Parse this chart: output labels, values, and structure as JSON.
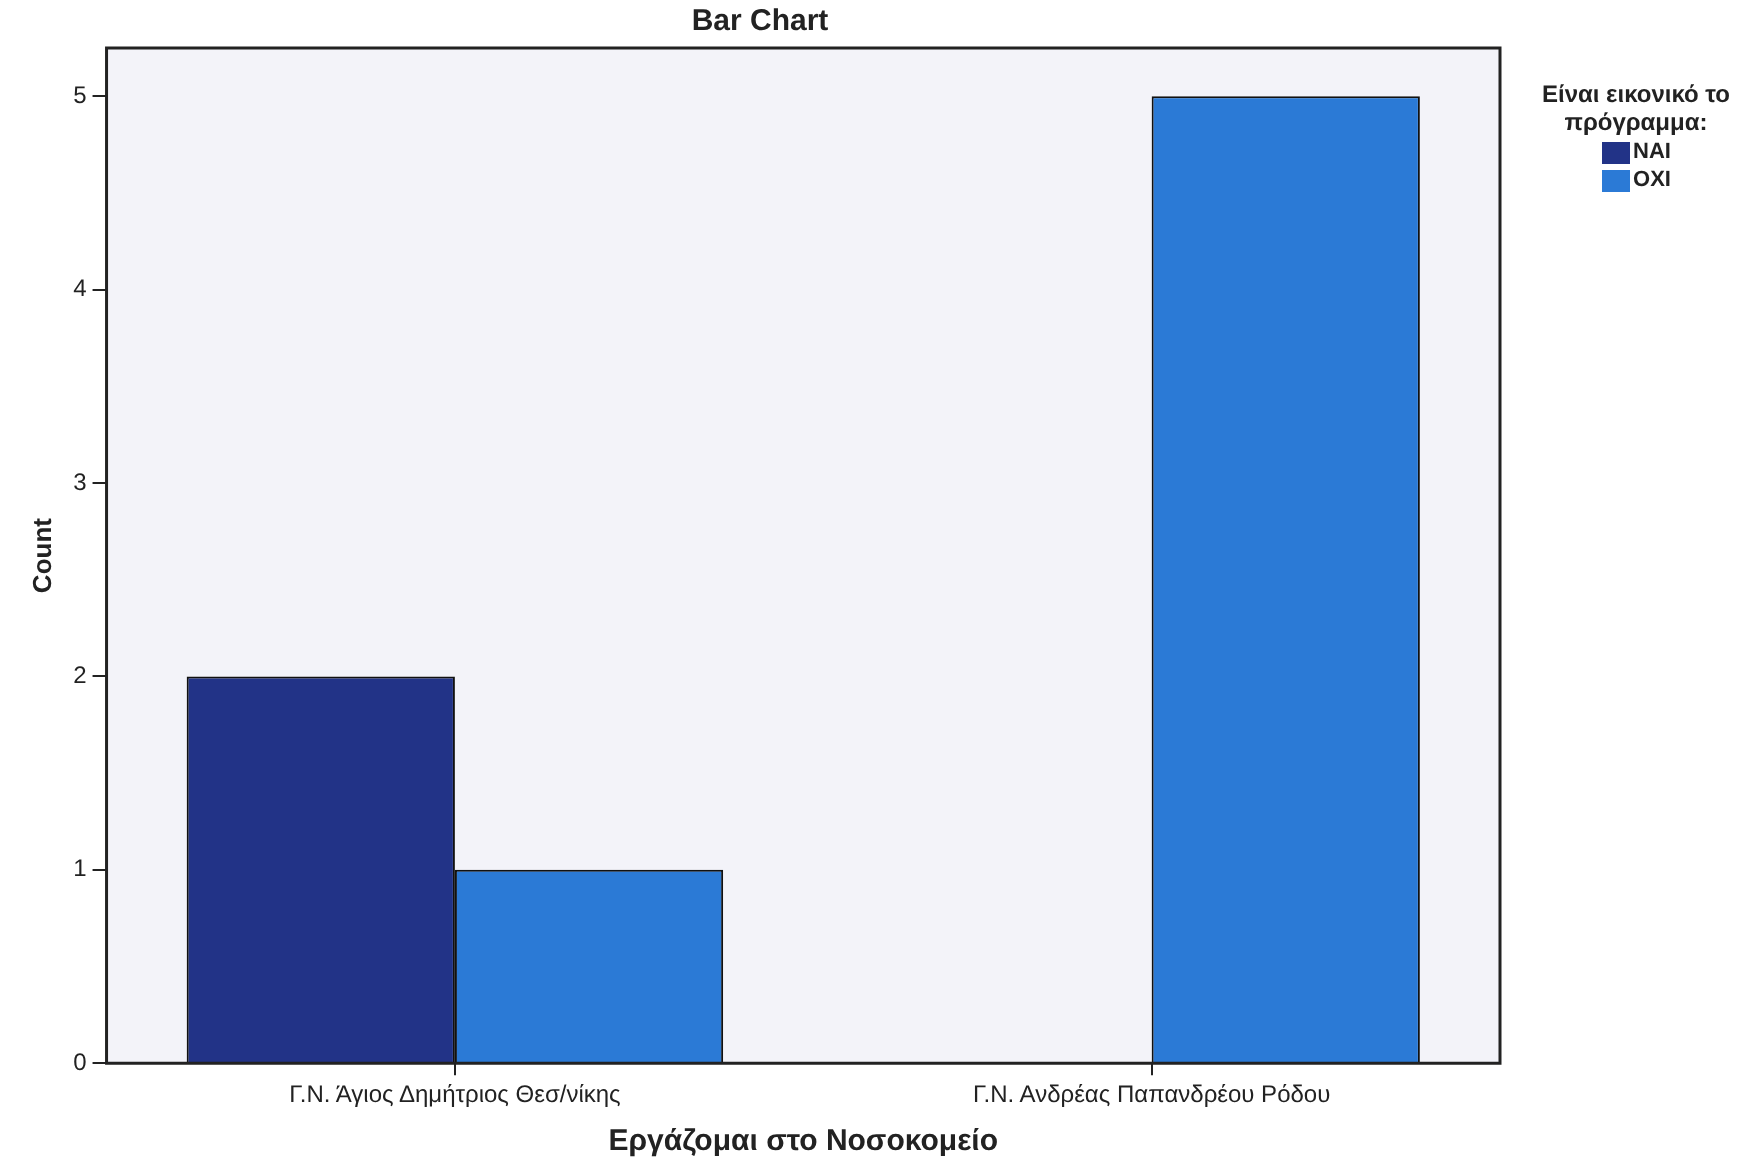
{
  "chart_data": {
    "type": "bar",
    "title": "Bar Chart",
    "xlabel": "Εργάζομαι στο Νοσοκομείο",
    "ylabel": "Count",
    "legend_title": "Είναι εικονικό το πρόγραμμα:",
    "categories": [
      "Γ.Ν. Άγιος Δημήτριος Θεσ/νίκης",
      "Γ.Ν. Ανδρέας Παπανδρέου Ρόδου"
    ],
    "series": [
      {
        "name": "ΝΑΙ",
        "color": "#223387",
        "values": [
          2,
          null
        ]
      },
      {
        "name": "ΟΧΙ",
        "color": "#2b7ad6",
        "values": [
          1,
          5
        ]
      }
    ],
    "ylim": [
      0,
      5.25
    ],
    "yticks": [
      0,
      1,
      2,
      3,
      4,
      5
    ],
    "legend": "top right"
  }
}
